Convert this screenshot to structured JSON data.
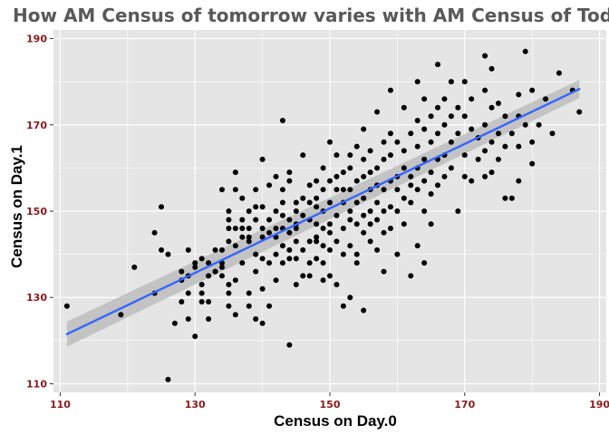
{
  "chart_data": {
    "type": "scatter",
    "title": "How AM Census of tomorrow varies with AM Census of Today",
    "xlabel": "Census on Day.0",
    "ylabel": "Census on Day.1",
    "xlim": [
      109,
      191
    ],
    "ylim": [
      108,
      192
    ],
    "x_ticks": [
      "110",
      "130",
      "150",
      "170",
      "190"
    ],
    "y_ticks": [
      "110",
      "130",
      "150",
      "170",
      "190"
    ],
    "grid": true,
    "legend": "none",
    "colors": {
      "panel": "#e5e5e5",
      "grid": "#ffffff",
      "points": "#000000",
      "fit_line": "#3366ff",
      "confidence_band": "#bdbdbd",
      "title": "#595959",
      "tick_labels": "#8b1a1a"
    },
    "fit": {
      "method": "linear",
      "x": [
        111,
        187
      ],
      "y": [
        121.5,
        178.3
      ],
      "se_lower": [
        118.6,
        176.2
      ],
      "se_upper": [
        124.4,
        180.4
      ]
    },
    "points": [
      [
        111,
        128
      ],
      [
        119,
        126
      ],
      [
        121,
        137
      ],
      [
        124,
        145
      ],
      [
        124,
        131
      ],
      [
        125,
        151
      ],
      [
        125,
        141
      ],
      [
        126,
        111
      ],
      [
        126,
        140
      ],
      [
        127,
        124
      ],
      [
        128,
        134
      ],
      [
        128,
        129
      ],
      [
        128,
        136
      ],
      [
        129,
        141
      ],
      [
        129,
        131
      ],
      [
        129,
        125
      ],
      [
        129,
        135
      ],
      [
        130,
        121
      ],
      [
        130,
        138
      ],
      [
        130,
        137
      ],
      [
        131,
        139
      ],
      [
        131,
        129
      ],
      [
        131,
        133
      ],
      [
        131,
        131
      ],
      [
        132,
        125
      ],
      [
        132,
        135
      ],
      [
        132,
        129
      ],
      [
        132,
        138
      ],
      [
        133,
        136
      ],
      [
        133,
        141
      ],
      [
        133,
        136
      ],
      [
        134,
        138
      ],
      [
        134,
        155
      ],
      [
        134,
        137
      ],
      [
        134,
        141
      ],
      [
        134,
        135
      ],
      [
        135,
        146
      ],
      [
        135,
        143
      ],
      [
        135,
        148
      ],
      [
        135,
        131
      ],
      [
        135,
        128
      ],
      [
        135,
        133
      ],
      [
        135,
        150
      ],
      [
        136,
        159
      ],
      [
        136,
        155
      ],
      [
        136,
        142
      ],
      [
        136,
        146
      ],
      [
        136,
        134
      ],
      [
        136,
        126
      ],
      [
        137,
        148
      ],
      [
        137,
        144
      ],
      [
        137,
        138
      ],
      [
        137,
        153
      ],
      [
        137,
        146
      ],
      [
        138,
        146
      ],
      [
        138,
        143
      ],
      [
        138,
        150
      ],
      [
        138,
        131
      ],
      [
        138,
        144
      ],
      [
        138,
        128
      ],
      [
        139,
        151
      ],
      [
        139,
        148
      ],
      [
        139,
        140
      ],
      [
        139,
        155
      ],
      [
        139,
        136
      ],
      [
        139,
        125
      ],
      [
        140,
        162
      ],
      [
        140,
        146
      ],
      [
        140,
        144
      ],
      [
        140,
        151
      ],
      [
        140,
        132
      ],
      [
        140,
        124
      ],
      [
        140,
        139
      ],
      [
        141,
        156
      ],
      [
        141,
        148
      ],
      [
        141,
        138
      ],
      [
        141,
        145
      ],
      [
        141,
        128
      ],
      [
        142,
        150
      ],
      [
        142,
        146
      ],
      [
        142,
        140
      ],
      [
        142,
        158
      ],
      [
        142,
        134
      ],
      [
        142,
        144
      ],
      [
        143,
        171
      ],
      [
        143,
        152
      ],
      [
        143,
        155
      ],
      [
        143,
        146
      ],
      [
        143,
        149
      ],
      [
        143,
        138
      ],
      [
        143,
        142
      ],
      [
        144,
        145
      ],
      [
        144,
        159
      ],
      [
        144,
        141
      ],
      [
        144,
        119
      ],
      [
        144,
        157
      ],
      [
        144,
        139
      ],
      [
        144,
        148
      ],
      [
        145,
        152
      ],
      [
        145,
        150
      ],
      [
        145,
        143
      ],
      [
        145,
        146
      ],
      [
        145,
        133
      ],
      [
        145,
        139
      ],
      [
        145,
        147
      ],
      [
        146,
        153
      ],
      [
        146,
        163
      ],
      [
        146,
        149
      ],
      [
        146,
        141
      ],
      [
        146,
        135
      ],
      [
        147,
        148
      ],
      [
        147,
        152
      ],
      [
        147,
        143
      ],
      [
        147,
        156
      ],
      [
        147,
        138
      ],
      [
        147,
        135
      ],
      [
        148,
        153
      ],
      [
        148,
        147
      ],
      [
        148,
        143
      ],
      [
        148,
        151
      ],
      [
        148,
        144
      ],
      [
        148,
        139
      ],
      [
        148,
        157
      ],
      [
        149,
        160
      ],
      [
        149,
        146
      ],
      [
        149,
        155
      ],
      [
        149,
        142
      ],
      [
        149,
        134
      ],
      [
        149,
        138
      ],
      [
        149,
        150
      ],
      [
        150,
        166
      ],
      [
        150,
        157
      ],
      [
        150,
        147
      ],
      [
        150,
        152
      ],
      [
        150,
        135
      ],
      [
        150,
        141
      ],
      [
        150,
        145
      ],
      [
        151,
        158
      ],
      [
        151,
        163
      ],
      [
        151,
        149
      ],
      [
        151,
        143
      ],
      [
        151,
        155
      ],
      [
        151,
        133
      ],
      [
        152,
        128
      ],
      [
        152,
        146
      ],
      [
        152,
        152
      ],
      [
        152,
        159
      ],
      [
        152,
        155
      ],
      [
        152,
        140
      ],
      [
        153,
        160
      ],
      [
        153,
        148
      ],
      [
        153,
        142
      ],
      [
        153,
        155
      ],
      [
        153,
        150
      ],
      [
        153,
        163
      ],
      [
        153,
        130
      ],
      [
        154,
        165
      ],
      [
        154,
        157
      ],
      [
        154,
        147
      ],
      [
        154,
        152
      ],
      [
        154,
        140
      ],
      [
        154,
        138
      ],
      [
        155,
        169
      ],
      [
        155,
        158
      ],
      [
        155,
        153
      ],
      [
        155,
        149
      ],
      [
        155,
        145
      ],
      [
        155,
        162
      ],
      [
        155,
        127
      ],
      [
        156,
        164
      ],
      [
        156,
        155
      ],
      [
        156,
        150
      ],
      [
        156,
        143
      ],
      [
        156,
        159
      ],
      [
        156,
        147
      ],
      [
        157,
        173
      ],
      [
        157,
        160
      ],
      [
        157,
        156
      ],
      [
        157,
        152
      ],
      [
        157,
        148
      ],
      [
        157,
        141
      ],
      [
        158,
        166
      ],
      [
        158,
        162
      ],
      [
        158,
        155
      ],
      [
        158,
        150
      ],
      [
        158,
        145
      ],
      [
        158,
        136
      ],
      [
        159,
        178
      ],
      [
        159,
        168
      ],
      [
        159,
        163
      ],
      [
        159,
        157
      ],
      [
        159,
        151
      ],
      [
        159,
        146
      ],
      [
        160,
        166
      ],
      [
        160,
        158
      ],
      [
        160,
        155
      ],
      [
        160,
        150
      ],
      [
        160,
        140
      ],
      [
        161,
        174
      ],
      [
        161,
        164
      ],
      [
        161,
        160
      ],
      [
        161,
        153
      ],
      [
        161,
        147
      ],
      [
        162,
        168
      ],
      [
        162,
        158
      ],
      [
        162,
        156
      ],
      [
        162,
        152
      ],
      [
        162,
        135
      ],
      [
        163,
        180
      ],
      [
        163,
        171
      ],
      [
        163,
        165
      ],
      [
        163,
        160
      ],
      [
        163,
        155
      ],
      [
        163,
        142
      ],
      [
        164,
        176
      ],
      [
        164,
        169
      ],
      [
        164,
        162
      ],
      [
        164,
        157
      ],
      [
        164,
        150
      ],
      [
        164,
        138
      ],
      [
        165,
        172
      ],
      [
        165,
        166
      ],
      [
        165,
        159
      ],
      [
        165,
        154
      ],
      [
        165,
        147
      ],
      [
        166,
        184
      ],
      [
        166,
        174
      ],
      [
        166,
        168
      ],
      [
        166,
        162
      ],
      [
        166,
        156
      ],
      [
        167,
        176
      ],
      [
        167,
        170
      ],
      [
        167,
        163
      ],
      [
        167,
        158
      ],
      [
        168,
        180
      ],
      [
        168,
        172
      ],
      [
        168,
        166
      ],
      [
        168,
        160
      ],
      [
        169,
        174
      ],
      [
        169,
        168
      ],
      [
        169,
        150
      ],
      [
        170,
        180
      ],
      [
        170,
        172
      ],
      [
        170,
        163
      ],
      [
        170,
        158
      ],
      [
        171,
        176
      ],
      [
        171,
        169
      ],
      [
        171,
        157
      ],
      [
        172,
        167
      ],
      [
        172,
        162
      ],
      [
        173,
        186
      ],
      [
        173,
        178
      ],
      [
        173,
        170
      ],
      [
        173,
        164
      ],
      [
        173,
        158
      ],
      [
        174,
        183
      ],
      [
        174,
        174
      ],
      [
        174,
        166
      ],
      [
        174,
        159
      ],
      [
        175,
        175
      ],
      [
        175,
        168
      ],
      [
        175,
        162
      ],
      [
        176,
        172
      ],
      [
        176,
        165
      ],
      [
        176,
        153
      ],
      [
        177,
        168
      ],
      [
        177,
        153
      ],
      [
        178,
        177
      ],
      [
        178,
        172
      ],
      [
        178,
        165
      ],
      [
        178,
        157
      ],
      [
        179,
        187
      ],
      [
        179,
        170
      ],
      [
        180,
        178
      ],
      [
        180,
        166
      ],
      [
        180,
        161
      ],
      [
        181,
        170
      ],
      [
        182,
        176
      ],
      [
        183,
        168
      ],
      [
        184,
        182
      ],
      [
        186,
        178
      ],
      [
        187,
        173
      ]
    ]
  }
}
